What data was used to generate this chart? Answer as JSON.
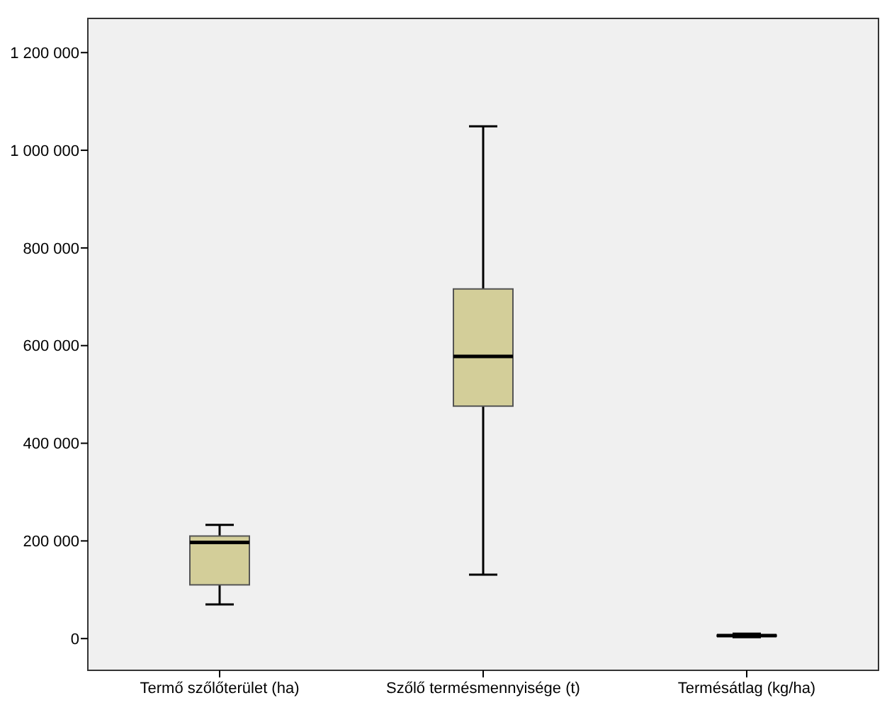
{
  "chart_data": {
    "type": "box",
    "categories": [
      "Termő szőlőterület (ha)",
      "Szőlő termésmennyisége (t)",
      "Termésátlag (kg/ha)"
    ],
    "boxes": [
      {
        "low": 70000,
        "q1": 110000,
        "median": 197000,
        "q3": 210000,
        "high": 233000
      },
      {
        "low": 131000,
        "q1": 476000,
        "median": 578000,
        "q3": 716000,
        "high": 1049000
      },
      {
        "low": 3000,
        "q1": 5000,
        "median": 6000,
        "q3": 7000,
        "high": 10000
      }
    ],
    "color": "#d3ce99",
    "ylim": [
      -65000,
      1270000
    ],
    "yticks": [
      {
        "value": 0,
        "label": "0"
      },
      {
        "value": 200000,
        "label": "200 000"
      },
      {
        "value": 400000,
        "label": "400 000"
      },
      {
        "value": 600000,
        "label": "600 000"
      },
      {
        "value": 800000,
        "label": "800 000"
      },
      {
        "value": 1000000,
        "label": "1 000 000"
      },
      {
        "value": 1200000,
        "label": "1 200 000"
      }
    ],
    "grid": false
  }
}
